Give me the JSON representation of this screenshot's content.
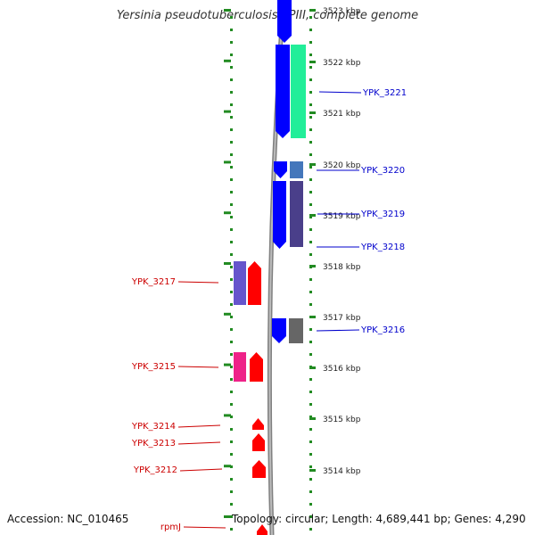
{
  "title": "Yersinia pseudotuberculosis YPIII, complete genome",
  "footer": {
    "accession": "Accession: NC_010465",
    "summary": "Topology: circular; Length: 4,689,441 bp; Genes: 4,290"
  },
  "colors": {
    "forward_strand": "#ff0000",
    "reverse_strand": "#0000ff",
    "forward_label": "#cc0000",
    "reverse_label": "#0000cc",
    "ruler": "#228b22",
    "backbone": "#808080"
  },
  "scale": {
    "ticks": [
      "3523 kbp",
      "3522 kbp",
      "3521 kbp",
      "3520 kbp",
      "3519 kbp",
      "3518 kbp",
      "3517 kbp",
      "3516 kbp",
      "3515 kbp",
      "3514 kbp"
    ]
  },
  "genes": [
    {
      "label": "YPK_3221",
      "strand": "reverse",
      "cog_color": "#22ee99"
    },
    {
      "label": "YPK_3220",
      "strand": "reverse",
      "cog_color": "#4477bb"
    },
    {
      "label": "YPK_3219",
      "strand": "reverse",
      "cog_color": "#4a3f8a"
    },
    {
      "label": "YPK_3218",
      "strand": "reverse",
      "cog_color": "#4a3f8a"
    },
    {
      "label": "YPK_3217",
      "strand": "forward",
      "cog_color": "#6655cc"
    },
    {
      "label": "YPK_3216",
      "strand": "reverse",
      "cog_color": "#666666"
    },
    {
      "label": "YPK_3215",
      "strand": "forward",
      "cog_color": "#ee2288"
    },
    {
      "label": "YPK_3214",
      "strand": "forward",
      "cog_color": ""
    },
    {
      "label": "YPK_3213",
      "strand": "forward",
      "cog_color": ""
    },
    {
      "label": "YPK_3212",
      "strand": "forward",
      "cog_color": ""
    },
    {
      "label": "rpmJ",
      "strand": "forward",
      "cog_color": ""
    }
  ]
}
